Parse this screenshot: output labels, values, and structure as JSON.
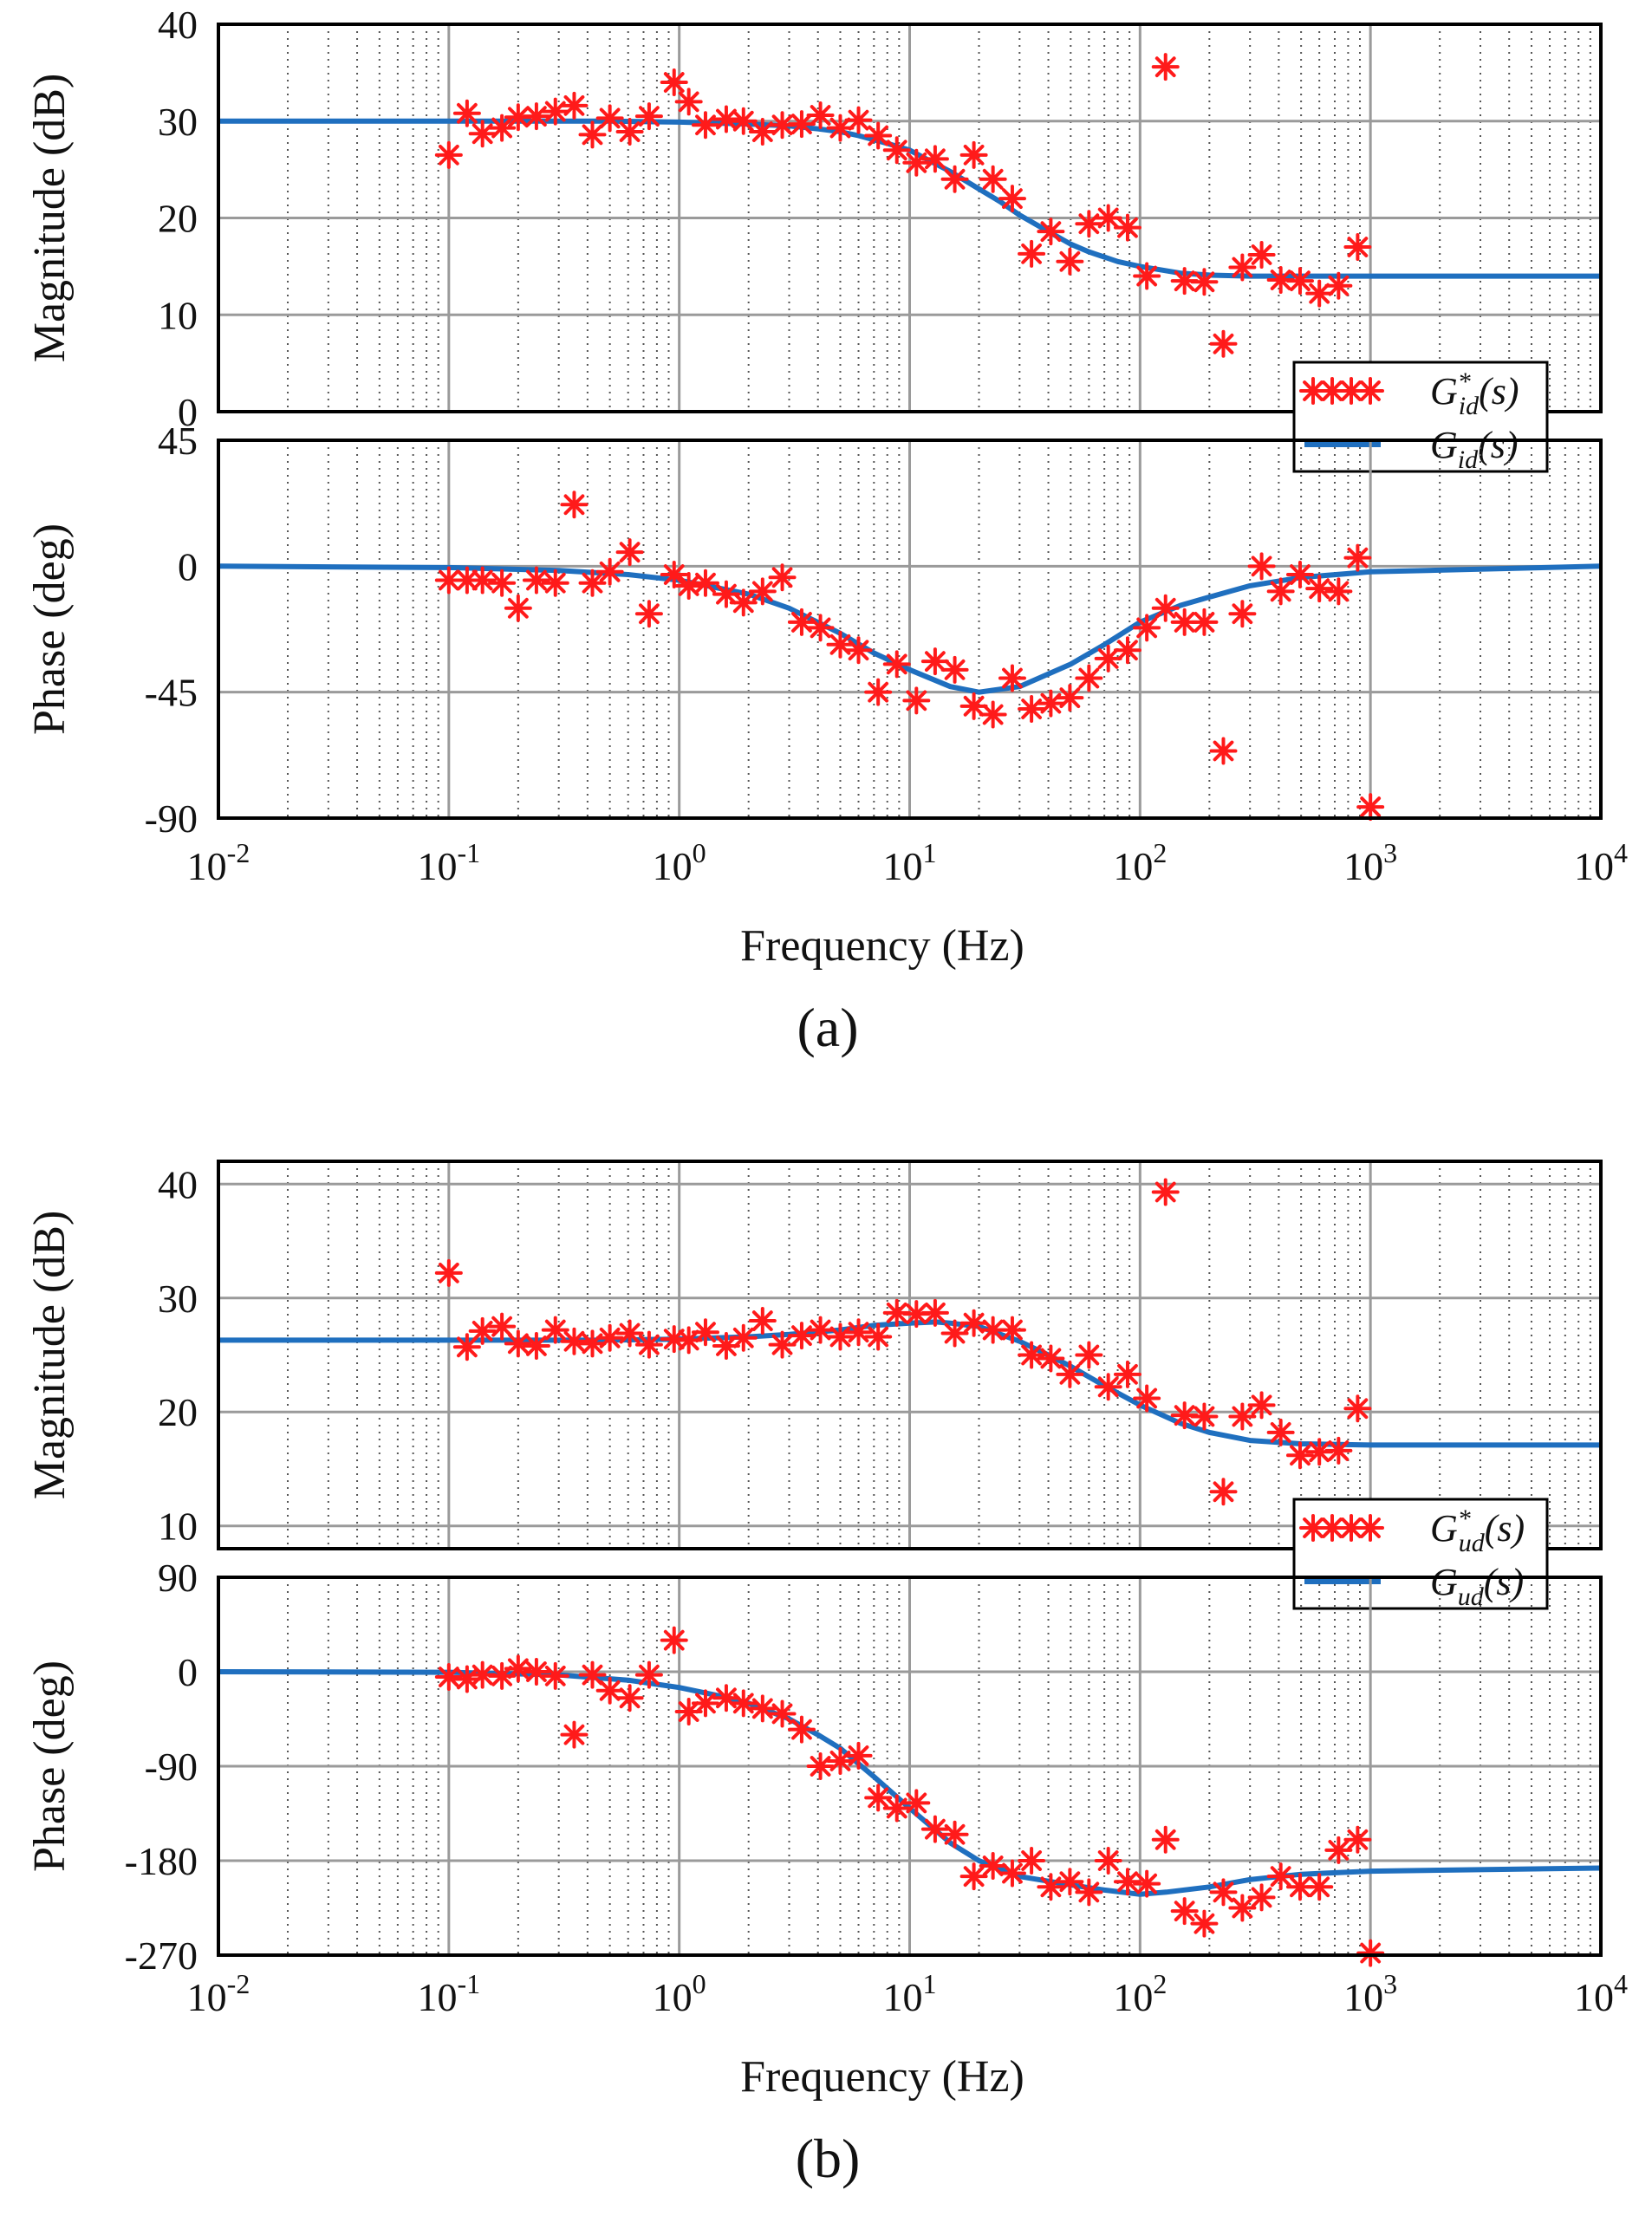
{
  "figure": {
    "panel_labels": [
      "(a)",
      "(b)"
    ],
    "xlabel": "Frequency  (Hz)",
    "x_tick_labels": [
      {
        "base": "10",
        "exp": "-2"
      },
      {
        "base": "10",
        "exp": "-1"
      },
      {
        "base": "10",
        "exp": "0"
      },
      {
        "base": "10",
        "exp": "1"
      },
      {
        "base": "10",
        "exp": "2"
      },
      {
        "base": "10",
        "exp": "3"
      },
      {
        "base": "10",
        "exp": "4"
      }
    ]
  },
  "colors": {
    "measured": "#ff1a1a",
    "model": "#1f6fbf",
    "grid_major": "#9a9a9a",
    "grid_minor": "#555555",
    "axis": "#000000"
  },
  "chart_data": [
    {
      "type": "scatter+line",
      "panel": "a",
      "subplot": "magnitude",
      "ylabel": "Magnitude (dB)",
      "xscale": "log",
      "xlim": [
        0.01,
        10000
      ],
      "ylim": [
        0,
        40
      ],
      "yticks": [
        0,
        10,
        20,
        30,
        40
      ],
      "legend": {
        "placement": "bottom-right",
        "entries": [
          {
            "main": "G",
            "sub": "id",
            "sup": "*",
            "arg": "(s)",
            "kind": "measured"
          },
          {
            "main": "G",
            "sub": "id",
            "sup": "",
            "arg": "(s)",
            "kind": "model"
          }
        ]
      },
      "series": [
        {
          "name": "G*id(s)",
          "kind": "measured",
          "x": [
            0.1,
            0.12,
            0.14,
            0.17,
            0.2,
            0.24,
            0.29,
            0.35,
            0.42,
            0.5,
            0.61,
            0.74,
            0.95,
            1.1,
            1.3,
            1.6,
            1.9,
            2.3,
            2.8,
            3.4,
            4.1,
            5,
            6,
            7.3,
            8.8,
            10.7,
            12.9,
            15.7,
            19,
            23,
            27.9,
            33.8,
            41,
            49.6,
            60,
            72.8,
            88.3,
            107,
            129,
            156,
            190,
            230,
            278,
            337,
            408,
            495,
            600,
            727,
            880,
            1000
          ],
          "y": [
            26.5,
            30.8,
            28.7,
            29.3,
            30.4,
            30.5,
            31,
            31.6,
            28.6,
            30.3,
            28.9,
            30.5,
            34,
            32,
            29.6,
            30.2,
            30,
            28.9,
            29.6,
            29.7,
            30.6,
            29.3,
            30.1,
            28.5,
            27,
            25.7,
            26.1,
            24,
            26.5,
            24,
            22,
            16.3,
            18.6,
            15.5,
            19.4,
            20,
            19,
            14,
            35.6,
            13.5,
            13.4,
            7,
            14.9,
            16.2,
            13.6,
            13.5,
            12.2,
            13,
            17,
            null
          ]
        },
        {
          "name": "Gid(s)",
          "kind": "model",
          "x": [
            0.01,
            0.1,
            0.5,
            1,
            2,
            3,
            4,
            5,
            6,
            8,
            10,
            12,
            15,
            20,
            25,
            30,
            40,
            50,
            60,
            80,
            100,
            150,
            200,
            300,
            500,
            1000,
            10000
          ],
          "y": [
            30,
            30,
            30,
            29.9,
            29.7,
            29.5,
            29.2,
            28.9,
            28.5,
            27.7,
            27,
            26,
            24.8,
            23,
            21.6,
            20.3,
            18.6,
            17.3,
            16.5,
            15.5,
            15,
            14.3,
            14.1,
            14,
            14,
            14,
            14
          ]
        }
      ]
    },
    {
      "type": "scatter+line",
      "panel": "a",
      "subplot": "phase",
      "ylabel": "Phase (deg)",
      "xscale": "log",
      "xlim": [
        0.01,
        10000
      ],
      "ylim": [
        -90,
        45
      ],
      "yticks": [
        -90,
        -45,
        0,
        45
      ],
      "series": [
        {
          "name": "G*id(s)",
          "kind": "measured",
          "x": [
            0.1,
            0.12,
            0.14,
            0.17,
            0.2,
            0.24,
            0.29,
            0.35,
            0.42,
            0.5,
            0.61,
            0.74,
            0.95,
            1.1,
            1.3,
            1.6,
            1.9,
            2.3,
            2.8,
            3.4,
            4.1,
            5,
            6,
            7.3,
            8.8,
            10.7,
            12.9,
            15.7,
            19,
            23,
            27.9,
            33.8,
            41,
            49.6,
            60,
            72.8,
            88.3,
            107,
            129,
            156,
            190,
            230,
            278,
            337,
            408,
            495,
            600,
            727,
            880,
            1000
          ],
          "y": [
            -5,
            -5,
            -5,
            -6,
            -15,
            -5,
            -6,
            22,
            -6,
            -2,
            5,
            -17,
            -3,
            -7,
            -6,
            -10,
            -13,
            -9,
            -4,
            -20,
            -22,
            -28,
            -30,
            -45,
            -35,
            -48,
            -34,
            -37,
            -50,
            -53,
            -40,
            -51,
            -49,
            -47,
            -40,
            -33,
            -30,
            -22,
            -15,
            -20,
            -20,
            -66,
            -17,
            0,
            -9,
            -3,
            -8,
            -9,
            3,
            -86
          ]
        },
        {
          "name": "Gid(s)",
          "kind": "model",
          "x": [
            0.01,
            0.1,
            0.3,
            0.6,
            1,
            2,
            3,
            5,
            7,
            10,
            15,
            20,
            30,
            50,
            70,
            100,
            150,
            200,
            300,
            500,
            1000,
            10000
          ],
          "y": [
            0,
            -0.5,
            -1.5,
            -3,
            -5,
            -10,
            -15,
            -24,
            -31,
            -37,
            -43,
            -45,
            -43,
            -35,
            -28,
            -20,
            -14,
            -11,
            -7,
            -4,
            -2,
            0
          ]
        }
      ]
    },
    {
      "type": "scatter+line",
      "panel": "b",
      "subplot": "magnitude",
      "ylabel": "Magnitude (dB)",
      "xscale": "log",
      "xlim": [
        0.01,
        10000
      ],
      "ylim": [
        8,
        42
      ],
      "yticks": [
        10,
        20,
        30,
        40
      ],
      "legend": {
        "placement": "bottom-right",
        "entries": [
          {
            "main": "G",
            "sub": "ud",
            "sup": "*",
            "arg": "(s)",
            "kind": "measured"
          },
          {
            "main": "G",
            "sub": "ud",
            "sup": "",
            "arg": "(s)",
            "kind": "model"
          }
        ]
      },
      "series": [
        {
          "name": "G*ud(s)",
          "kind": "measured",
          "x": [
            0.1,
            0.12,
            0.14,
            0.17,
            0.2,
            0.24,
            0.29,
            0.35,
            0.42,
            0.5,
            0.61,
            0.74,
            0.95,
            1.1,
            1.3,
            1.6,
            1.9,
            2.3,
            2.8,
            3.4,
            4.1,
            5,
            6,
            7.3,
            8.8,
            10.7,
            12.9,
            15.7,
            19,
            23,
            27.9,
            33.8,
            41,
            49.6,
            60,
            72.8,
            88.3,
            107,
            129,
            156,
            190,
            230,
            278,
            337,
            408,
            495,
            600,
            727,
            880,
            1000
          ],
          "y": [
            32.2,
            25.7,
            27.1,
            27.5,
            26,
            25.8,
            27.2,
            26.2,
            26,
            26.5,
            26.9,
            25.9,
            26.4,
            26.3,
            27,
            25.8,
            26.5,
            28,
            25.9,
            26.7,
            27.2,
            26.6,
            27,
            26.6,
            28.7,
            28.6,
            28.7,
            26.9,
            27.8,
            27.2,
            27.2,
            25,
            24.7,
            23.3,
            25,
            22.2,
            23.3,
            21.2,
            39.3,
            19.7,
            19.6,
            13,
            19.6,
            20.6,
            18.2,
            16.2,
            16.5,
            16.6,
            20.3,
            null
          ]
        },
        {
          "name": "Gud(s)",
          "kind": "model",
          "x": [
            0.01,
            0.1,
            0.5,
            1,
            2,
            3,
            5,
            7,
            10,
            13,
            15,
            20,
            30,
            40,
            50,
            70,
            100,
            150,
            200,
            300,
            500,
            1000,
            10000
          ],
          "y": [
            26.3,
            26.3,
            26.3,
            26.4,
            26.6,
            26.8,
            27.2,
            27.6,
            27.8,
            27.9,
            27.8,
            27.5,
            26.2,
            25,
            24,
            22.3,
            20.6,
            19,
            18.2,
            17.5,
            17.2,
            17.1,
            17.1
          ]
        }
      ]
    },
    {
      "type": "scatter+line",
      "panel": "b",
      "subplot": "phase",
      "ylabel": "Phase (deg)",
      "xscale": "log",
      "xlim": [
        0.01,
        10000
      ],
      "ylim": [
        -270,
        90
      ],
      "yticks": [
        -270,
        -180,
        -90,
        0,
        90
      ],
      "series": [
        {
          "name": "G*ud(s)",
          "kind": "measured",
          "x": [
            0.1,
            0.12,
            0.14,
            0.17,
            0.2,
            0.24,
            0.29,
            0.35,
            0.42,
            0.5,
            0.61,
            0.74,
            0.95,
            1.1,
            1.3,
            1.6,
            1.9,
            2.3,
            2.8,
            3.4,
            4.1,
            5,
            6,
            7.3,
            8.8,
            10.7,
            12.9,
            15.7,
            19,
            23,
            27.9,
            33.8,
            41,
            49.6,
            60,
            72.8,
            88.3,
            107,
            129,
            156,
            190,
            230,
            278,
            337,
            408,
            495,
            600,
            727,
            880,
            1000
          ],
          "y": [
            -5,
            -7,
            -3,
            -4,
            3,
            0,
            -4,
            -60,
            -3,
            -18,
            -25,
            -3,
            30,
            -38,
            -30,
            -25,
            -30,
            -35,
            -40,
            -55,
            -90,
            -85,
            -80,
            -120,
            -130,
            -125,
            -150,
            -155,
            -195,
            -185,
            -192,
            -180,
            -205,
            -200,
            -210,
            -180,
            -200,
            -202,
            -160,
            -228,
            -240,
            -210,
            -225,
            -215,
            -195,
            -205,
            -205,
            -170,
            -160,
            -268
          ]
        },
        {
          "name": "Gud(s)",
          "kind": "model",
          "x": [
            0.01,
            0.1,
            0.3,
            0.6,
            1,
            1.5,
            2,
            3,
            4,
            5,
            7,
            10,
            15,
            20,
            30,
            50,
            70,
            100,
            130,
            200,
            300,
            500,
            1000,
            10000
          ],
          "y": [
            0,
            -0.5,
            -3,
            -8,
            -15,
            -23,
            -30,
            -45,
            -60,
            -73,
            -100,
            -130,
            -163,
            -180,
            -195,
            -203,
            -208,
            -212,
            -210,
            -205,
            -198,
            -193,
            -190,
            -187
          ]
        }
      ]
    }
  ]
}
